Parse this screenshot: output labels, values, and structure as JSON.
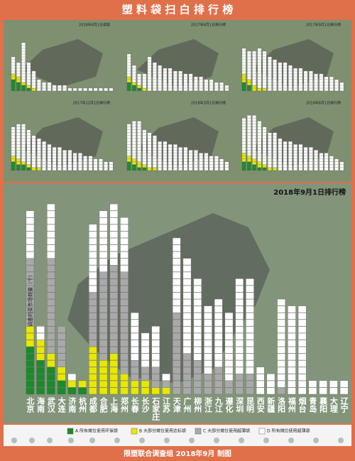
{
  "header": {
    "title": "塑 料 袋 扫 白 排 行 榜"
  },
  "footer": {
    "text": "限塑联合调查组  2018年9月  制图"
  },
  "chart_data": [
    {
      "type": "bar",
      "stacked": true,
      "title": "2018年6月1日调查",
      "ylim": [
        0,
        22
      ],
      "series": [
        {
          "color": "#1a8a2a",
          "values": [
            4,
            3,
            2,
            1,
            0,
            0,
            0,
            0,
            0,
            0,
            0,
            0,
            0,
            0,
            0,
            0,
            0,
            0,
            0,
            0
          ]
        },
        {
          "color": "#e8e800",
          "values": [
            2,
            2,
            1,
            1,
            1,
            0,
            0,
            0,
            0,
            0,
            0,
            0,
            0,
            0,
            0,
            0,
            0,
            0,
            0,
            0
          ]
        },
        {
          "color": "#ffffff",
          "values": [
            6,
            5,
            14,
            8,
            6,
            4,
            3,
            3,
            2,
            2,
            2,
            1,
            1,
            1,
            1,
            1,
            1,
            1,
            1,
            1
          ]
        }
      ]
    },
    {
      "type": "bar",
      "stacked": true,
      "title": "2017年6月1日排行榜",
      "ylim": [
        0,
        22
      ],
      "series": [
        {
          "color": "#1a8a2a",
          "values": [
            3,
            2,
            1,
            0,
            0,
            0,
            0,
            0,
            0,
            0,
            0,
            0,
            0,
            0,
            0,
            0,
            0,
            0,
            0,
            0
          ]
        },
        {
          "color": "#e8e800",
          "values": [
            2,
            1,
            1,
            1,
            0,
            0,
            0,
            0,
            0,
            0,
            0,
            0,
            0,
            0,
            0,
            0,
            0,
            0,
            0,
            0
          ]
        },
        {
          "color": "#ffffff",
          "values": [
            8,
            6,
            4,
            5,
            12,
            10,
            9,
            8,
            8,
            7,
            7,
            6,
            6,
            5,
            5,
            4,
            4,
            3,
            3,
            2
          ]
        }
      ]
    },
    {
      "type": "bar",
      "stacked": true,
      "title": "2017年9月1日排行榜",
      "ylim": [
        0,
        22
      ],
      "series": [
        {
          "color": "#1a8a2a",
          "values": [
            3,
            2,
            0,
            0,
            0,
            0,
            0,
            0,
            0,
            0,
            0,
            0,
            0,
            0,
            0,
            0,
            0,
            0,
            0,
            0
          ]
        },
        {
          "color": "#e8e800",
          "values": [
            3,
            2,
            2,
            1,
            1,
            0,
            0,
            0,
            0,
            0,
            0,
            0,
            0,
            0,
            0,
            0,
            0,
            0,
            0,
            0
          ]
        },
        {
          "color": "#ffffff",
          "values": [
            9,
            10,
            12,
            14,
            13,
            12,
            11,
            10,
            10,
            9,
            8,
            8,
            7,
            7,
            6,
            6,
            5,
            5,
            4,
            3
          ]
        }
      ]
    },
    {
      "type": "bar",
      "stacked": true,
      "title": "2017年12月1日排行榜",
      "ylim": [
        0,
        22
      ],
      "series": [
        {
          "color": "#1a8a2a",
          "values": [
            3,
            2,
            2,
            1,
            0,
            0,
            0,
            0,
            0,
            0,
            0,
            0,
            0,
            0,
            0,
            0,
            0,
            0,
            0,
            0
          ]
        },
        {
          "color": "#e8e800",
          "values": [
            2,
            2,
            1,
            1,
            1,
            1,
            0,
            0,
            0,
            0,
            0,
            0,
            0,
            0,
            0,
            0,
            0,
            0,
            0,
            0
          ]
        },
        {
          "color": "#ffffff",
          "values": [
            10,
            12,
            13,
            12,
            11,
            10,
            10,
            9,
            8,
            8,
            7,
            7,
            6,
            6,
            5,
            5,
            4,
            4,
            3,
            3
          ]
        }
      ]
    },
    {
      "type": "bar",
      "stacked": true,
      "title": "2018年3月1日排行榜",
      "ylim": [
        0,
        22
      ],
      "series": [
        {
          "color": "#1a8a2a",
          "values": [
            3,
            2,
            1,
            1,
            0,
            0,
            0,
            0,
            0,
            0,
            0,
            0,
            0,
            0,
            0,
            0,
            0,
            0,
            0,
            0
          ]
        },
        {
          "color": "#e8e800",
          "values": [
            2,
            2,
            2,
            1,
            1,
            1,
            0,
            0,
            0,
            0,
            0,
            0,
            0,
            0,
            0,
            0,
            0,
            0,
            0,
            0
          ]
        },
        {
          "color": "#ffffff",
          "values": [
            11,
            13,
            14,
            12,
            12,
            11,
            10,
            10,
            9,
            9,
            8,
            8,
            7,
            7,
            6,
            6,
            5,
            5,
            4,
            3
          ]
        }
      ]
    },
    {
      "type": "bar",
      "stacked": true,
      "title": "2018年6月1日排行榜",
      "ylim": [
        0,
        22
      ],
      "series": [
        {
          "color": "#1a8a2a",
          "values": [
            3,
            3,
            2,
            1,
            1,
            0,
            0,
            0,
            0,
            0,
            0,
            0,
            0,
            0,
            0,
            0,
            0,
            0,
            0,
            0
          ]
        },
        {
          "color": "#e8e800",
          "values": [
            3,
            2,
            2,
            2,
            1,
            1,
            1,
            0,
            0,
            0,
            0,
            0,
            0,
            0,
            0,
            0,
            0,
            0,
            0,
            0
          ]
        },
        {
          "color": "#ffffff",
          "values": [
            12,
            14,
            15,
            14,
            13,
            12,
            12,
            11,
            10,
            10,
            9,
            9,
            8,
            8,
            7,
            6,
            6,
            5,
            4,
            3
          ]
        }
      ]
    },
    {
      "type": "bar",
      "stacked": true,
      "title": "2018年9月1日排行榜",
      "y_label": "调查的菜市场数量（个）",
      "ylim": [
        0,
        30
      ],
      "categories": [
        "北京",
        "海南",
        "武汉",
        "大连",
        "济南",
        "杭州",
        "成都",
        "合肥",
        "上海",
        "郑州",
        "长春",
        "长沙",
        "石家庄",
        "江苏",
        "天津",
        "广州",
        "柳州",
        "浙江",
        "九江",
        "遵化",
        "深圳",
        "昆明",
        "西安",
        "新疆",
        "洛阳",
        "福州",
        "烟台",
        "青岛",
        "襄阳",
        "大理",
        "辽宁"
      ],
      "series": [
        {
          "name": "A 所有摊位使用环保袋",
          "color": "#1a8a2a",
          "values": [
            7,
            5,
            4,
            2,
            1,
            1,
            0,
            0,
            0,
            0,
            0,
            0,
            0,
            0,
            0,
            0,
            0,
            0,
            0,
            0,
            0,
            0,
            0,
            0,
            0,
            0,
            0,
            0,
            0,
            0,
            0
          ]
        },
        {
          "name": "B 大部分摊位使用达标袋",
          "color": "#e8e800",
          "values": [
            3,
            3,
            2,
            2,
            1,
            1,
            7,
            5,
            6,
            3,
            2,
            2,
            1,
            1,
            0,
            0,
            0,
            0,
            0,
            0,
            0,
            0,
            0,
            0,
            0,
            0,
            0,
            0,
            0,
            0,
            0
          ]
        },
        {
          "name": "C 大部分摊位使用超薄袋",
          "color": "#a9a9a9",
          "values": [
            10,
            0,
            14,
            6,
            0,
            0,
            8,
            13,
            13,
            15,
            3,
            2,
            3,
            1,
            12,
            6,
            5,
            3,
            4,
            2,
            3,
            3,
            0,
            0,
            1,
            0,
            0,
            0,
            0,
            0,
            0
          ]
        },
        {
          "name": "D 所有摊位使用超薄袋",
          "color": "#ffffff",
          "values": [
            7,
            2,
            8,
            0,
            1,
            0,
            10,
            9,
            9,
            8,
            7,
            5,
            6,
            1,
            11,
            14,
            12,
            10,
            10,
            10,
            14,
            14,
            4,
            3,
            13,
            13,
            13,
            2,
            2,
            2,
            2
          ]
        }
      ]
    }
  ]
}
